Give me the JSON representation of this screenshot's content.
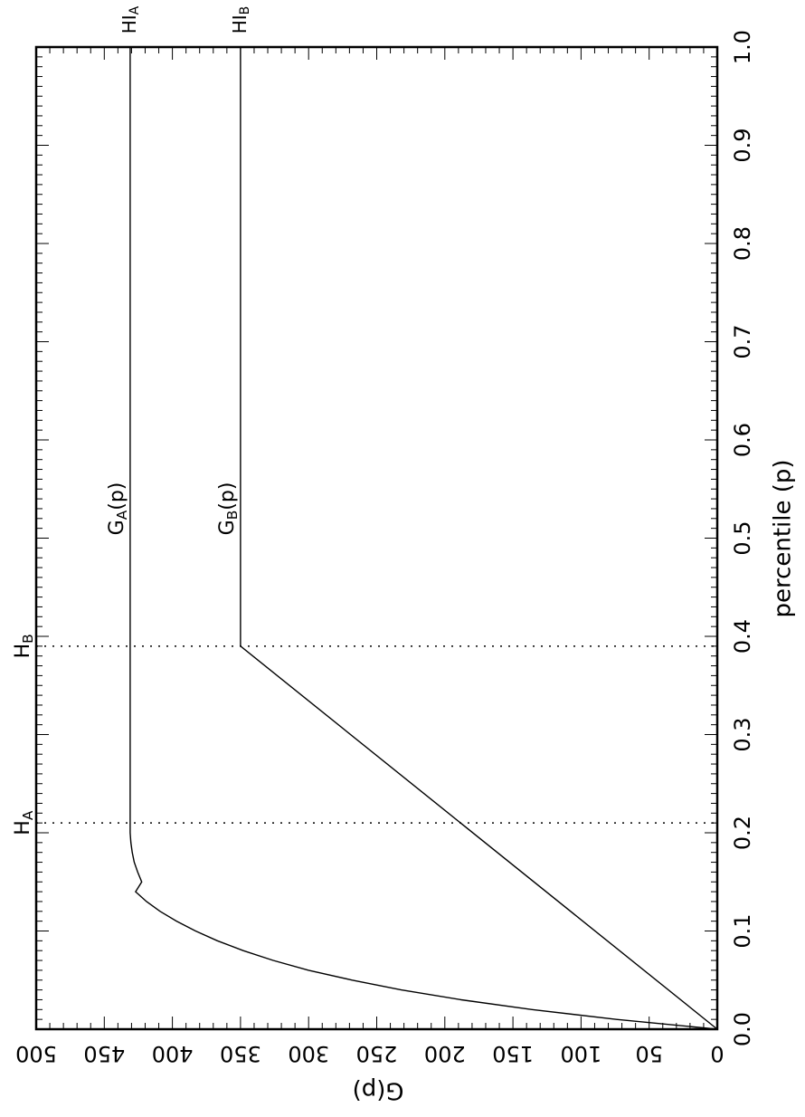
{
  "chart_data": {
    "type": "line",
    "xlabel": "percentile (p)",
    "ylabel": "G(p)",
    "xlim": [
      0.0,
      1.0
    ],
    "ylim": [
      0,
      500
    ],
    "x_ticks": [
      "0.0",
      "0.1",
      "0.2",
      "0.3",
      "0.4",
      "0.5",
      "0.6",
      "0.7",
      "0.8",
      "0.9",
      "1.0"
    ],
    "y_ticks": [
      "0",
      "50",
      "100",
      "150",
      "200",
      "250",
      "300",
      "350",
      "400",
      "450",
      "500"
    ],
    "grid": false,
    "orientation": "rotated 90° clockwise",
    "series": [
      {
        "name": "G_A(p)",
        "x": [
          0.0,
          0.01,
          0.02,
          0.03,
          0.04,
          0.05,
          0.06,
          0.07,
          0.08,
          0.09,
          0.1,
          0.11,
          0.12,
          0.13,
          0.14,
          0.15,
          0.16,
          0.17,
          0.18,
          0.19,
          0.2,
          0.21,
          1.0
        ],
        "y": [
          0,
          74,
          136,
          188,
          232,
          268,
          300,
          326,
          348,
          367,
          383,
          397,
          409,
          419,
          427,
          422.5,
          425.5,
          428,
          429.5,
          430.5,
          431,
          431,
          431
        ]
      },
      {
        "name": "G_B(p)",
        "x": [
          0.0,
          0.39,
          1.0
        ],
        "y": [
          0,
          350,
          350
        ]
      }
    ],
    "reference_lines": [
      {
        "label": "H_A",
        "x": 0.21
      },
      {
        "label": "H_B",
        "x": 0.39
      }
    ],
    "top_labels": [
      {
        "label": "HI_A",
        "y": 431
      },
      {
        "label": "HI_B",
        "y": 350
      }
    ]
  }
}
